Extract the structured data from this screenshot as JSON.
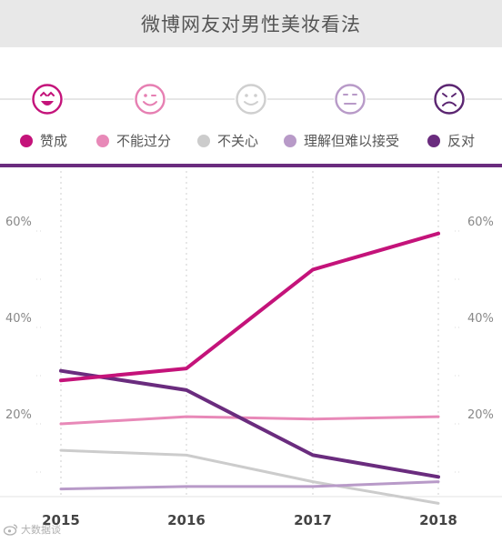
{
  "title": "微博网友对男性美妆看法",
  "faces": [
    {
      "icon": "laughing-face-icon",
      "color": "#c4137a"
    },
    {
      "icon": "winking-face-icon",
      "color": "#e67fb2"
    },
    {
      "icon": "smiling-face-icon",
      "color": "#cfcfcf"
    },
    {
      "icon": "neutral-face-icon",
      "color": "#b89ac8"
    },
    {
      "icon": "frowning-face-icon",
      "color": "#5b2571"
    }
  ],
  "chart_data": {
    "type": "line",
    "x": [
      "2015",
      "2016",
      "2017",
      "2018"
    ],
    "ylim": [
      0,
      65
    ],
    "yticks": [
      "20%",
      "40%",
      "60%"
    ],
    "ytick_values": [
      20,
      40,
      60
    ],
    "grid": true,
    "legend_position": "top",
    "series": [
      {
        "name": "赞成",
        "color": "#c4137a",
        "values": [
          29,
          31.5,
          52,
          59.5
        ]
      },
      {
        "name": "不能过分",
        "color": "#e889b8",
        "values": [
          20,
          21.5,
          21,
          21.5
        ]
      },
      {
        "name": "不关心",
        "color": "#cccccc",
        "values": [
          14.5,
          13.5,
          8,
          3.5
        ]
      },
      {
        "name": "理解但难以接受",
        "color": "#b89ac8",
        "values": [
          6.5,
          7,
          7,
          8
        ]
      },
      {
        "name": "反对",
        "color": "#6a2c7e",
        "values": [
          31,
          27,
          13.5,
          9
        ]
      }
    ]
  },
  "watermark": "大数据谈"
}
